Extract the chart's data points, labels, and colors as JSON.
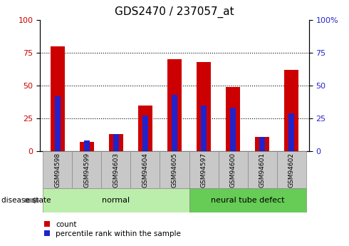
{
  "title": "GDS2470 / 237057_at",
  "samples": [
    "GSM94598",
    "GSM94599",
    "GSM94603",
    "GSM94604",
    "GSM94605",
    "GSM94597",
    "GSM94600",
    "GSM94601",
    "GSM94602"
  ],
  "count_values": [
    80,
    7,
    13,
    35,
    70,
    68,
    49,
    11,
    62
  ],
  "percentile_values": [
    42,
    8,
    13,
    27,
    43,
    35,
    33,
    11,
    29
  ],
  "count_color": "#cc0000",
  "percentile_color": "#2222cc",
  "normal_group": [
    0,
    1,
    2,
    3,
    4
  ],
  "defect_group": [
    5,
    6,
    7,
    8
  ],
  "normal_label": "normal",
  "defect_label": "neural tube defect",
  "disease_state_label": "disease state",
  "yticks_left": [
    0,
    25,
    50,
    75,
    100
  ],
  "yticks_right": [
    0,
    25,
    50,
    75,
    100
  ],
  "ylim": [
    0,
    100
  ],
  "bar_width": 0.5,
  "blue_bar_width": 0.18,
  "group_bg_color": "#c8c8c8",
  "normal_bg_color": "#bbeeaa",
  "defect_bg_color": "#66cc55",
  "legend_count": "count",
  "legend_percentile": "percentile rank within the sample",
  "title_fontsize": 11,
  "tick_fontsize": 8,
  "label_fontsize": 6.5,
  "group_fontsize": 8
}
